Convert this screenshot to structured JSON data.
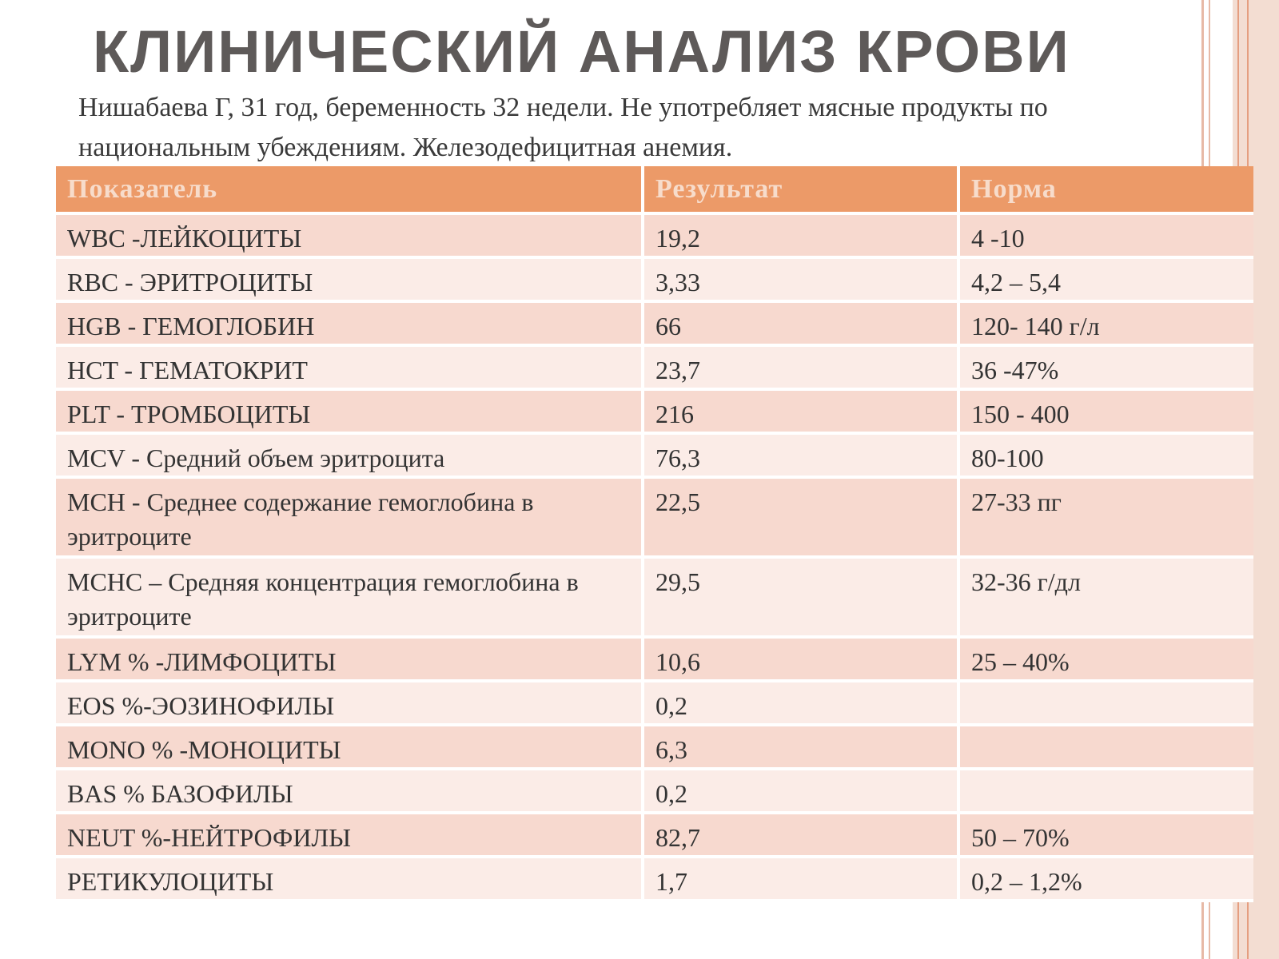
{
  "title": "КЛИНИЧЕСКИЙ АНАЛИЗ КРОВИ",
  "subtitle": "Нишабаева Г, 31 год, беременность 32 недели. Не употребляет мясные продукты по национальным убеждениям.  Железодефицитная анемия.",
  "table": {
    "headers": [
      "Показатель",
      "Результат",
      "Норма"
    ],
    "rows": [
      {
        "indicator": "WBC -ЛЕЙКОЦИТЫ",
        "result": "19,2",
        "norm": "4 -10"
      },
      {
        "indicator": "RBC - ЭРИТРОЦИТЫ",
        "result": "3,33",
        "norm": "4,2 – 5,4"
      },
      {
        "indicator": "HGB - ГЕМОГЛОБИН",
        "result": "66",
        "norm": "120- 140 г/л"
      },
      {
        "indicator": "HCT - ГЕМАТОКРИТ",
        "result": "23,7",
        "norm": "36 -47%"
      },
      {
        "indicator": "PLT - ТРОМБОЦИТЫ",
        "result": "216",
        "norm": "150 - 400"
      },
      {
        "indicator": "MCV - Средний объем эритроцита",
        "result": "76,3",
        "norm": "80-100"
      },
      {
        "indicator": "MCH  - Среднее содержание гемоглобина в эритроците",
        "result": "22,5",
        "norm": "27-33 пг"
      },
      {
        "indicator": "MCHC – Средняя концентрация гемоглобина в эритроците",
        "result": "29,5",
        "norm": "32-36 г/дл"
      },
      {
        "indicator": "LYM % -ЛИМФОЦИТЫ",
        "result": "10,6",
        "norm": "25 – 40%"
      },
      {
        "indicator": "EOS %-ЭОЗИНОФИЛЫ",
        "result": "0,2",
        "norm": ""
      },
      {
        "indicator": "MONO % -МОНОЦИТЫ",
        "result": "6,3",
        "norm": ""
      },
      {
        "indicator": "BAS % БАЗОФИЛЫ",
        "result": "0,2",
        "norm": ""
      },
      {
        "indicator": "NEUT %-НЕЙТРОФИЛЫ",
        "result": "82,7",
        "norm": "50 – 70%"
      },
      {
        "indicator": "РЕТИКУЛОЦИТЫ",
        "result": "1,7",
        "norm": "0,2 – 1,2%"
      }
    ]
  },
  "colors": {
    "header_bg": "#ec9a68",
    "row_odd_bg": "#f7d9cf",
    "row_even_bg": "#fbece7",
    "title_color": "#5e5a59"
  }
}
